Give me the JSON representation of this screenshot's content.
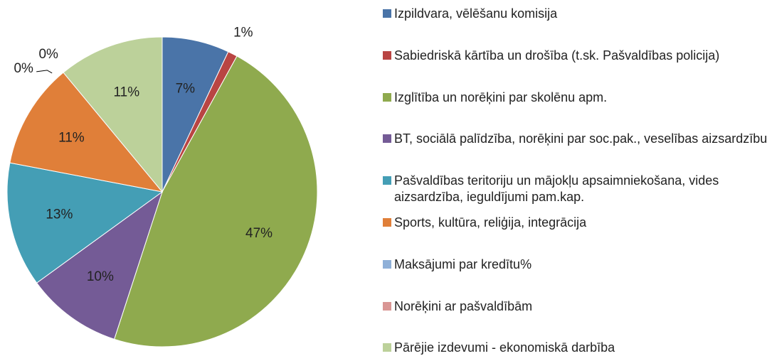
{
  "chart_data": {
    "type": "pie",
    "categories": [
      "Izpildvara, vēlēšanu komisija",
      "Sabiedriskā kārtība un drošība (t.sk. Pašvaldības policija)",
      "Izglītība un norēķini par skolēnu apm.",
      "BT, sociālā palīdzība, norēķini par soc.pak., veselības aizsardzību",
      "Pašvaldības teritoriju un mājokļu apsaimniekošana, vides aizsardzība, ieguldījumi pam.kap.",
      "Sports, kultūra, reliģija, integrācija",
      "Maksājumi par kredītu%",
      "Norēķini ar pašvaldībām",
      "Pārējie izdevumi - ekonomiskā darbība"
    ],
    "values": [
      7,
      1,
      47,
      10,
      13,
      11,
      0,
      0,
      11
    ],
    "value_labels": [
      "7%",
      "1%",
      "47%",
      "10%",
      "13%",
      "11%",
      "0%",
      "0%",
      "11%"
    ],
    "colors": [
      "#4a74a8",
      "#b94543",
      "#8faa4e",
      "#745b96",
      "#449eb5",
      "#e07f39",
      "#8fb0d8",
      "#d99694",
      "#bcd19a"
    ]
  }
}
